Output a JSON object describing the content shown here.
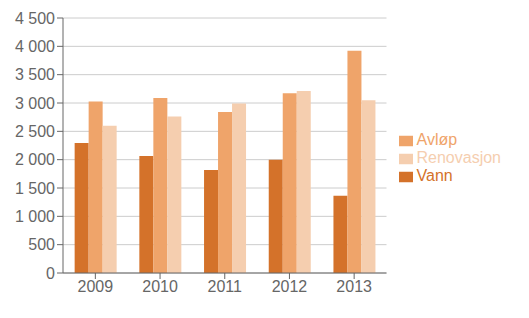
{
  "chart_data": {
    "type": "bar",
    "categories": [
      "2009",
      "2010",
      "2011",
      "2012",
      "2013"
    ],
    "series": [
      {
        "name": "Vann",
        "color": "#D4722A",
        "values": [
          2292,
          2064,
          1816,
          1998,
          1365
        ]
      },
      {
        "name": "Avløp",
        "color": "#EFA46A",
        "values": [
          3028,
          3090,
          2840,
          3170,
          3920
        ]
      },
      {
        "name": "Renovasjon",
        "color": "#F5CEAF",
        "values": [
          2600,
          2760,
          2990,
          3210,
          3050
        ]
      }
    ],
    "ylim": [
      0,
      4500
    ],
    "yticks": [
      0,
      500,
      {
        "value": 1000,
        "label": "1 000"
      },
      {
        "value": 1500,
        "label": "1 500"
      },
      {
        "value": 2000,
        "label": "2 000"
      },
      {
        "value": 2500,
        "label": "2 500"
      },
      {
        "value": 3000,
        "label": "3 000"
      },
      {
        "value": 3500,
        "label": "3 500"
      },
      {
        "value": 4000,
        "label": "4 000"
      },
      {
        "value": 4500,
        "label": "4 500"
      }
    ],
    "grid": true,
    "legend": "right"
  }
}
